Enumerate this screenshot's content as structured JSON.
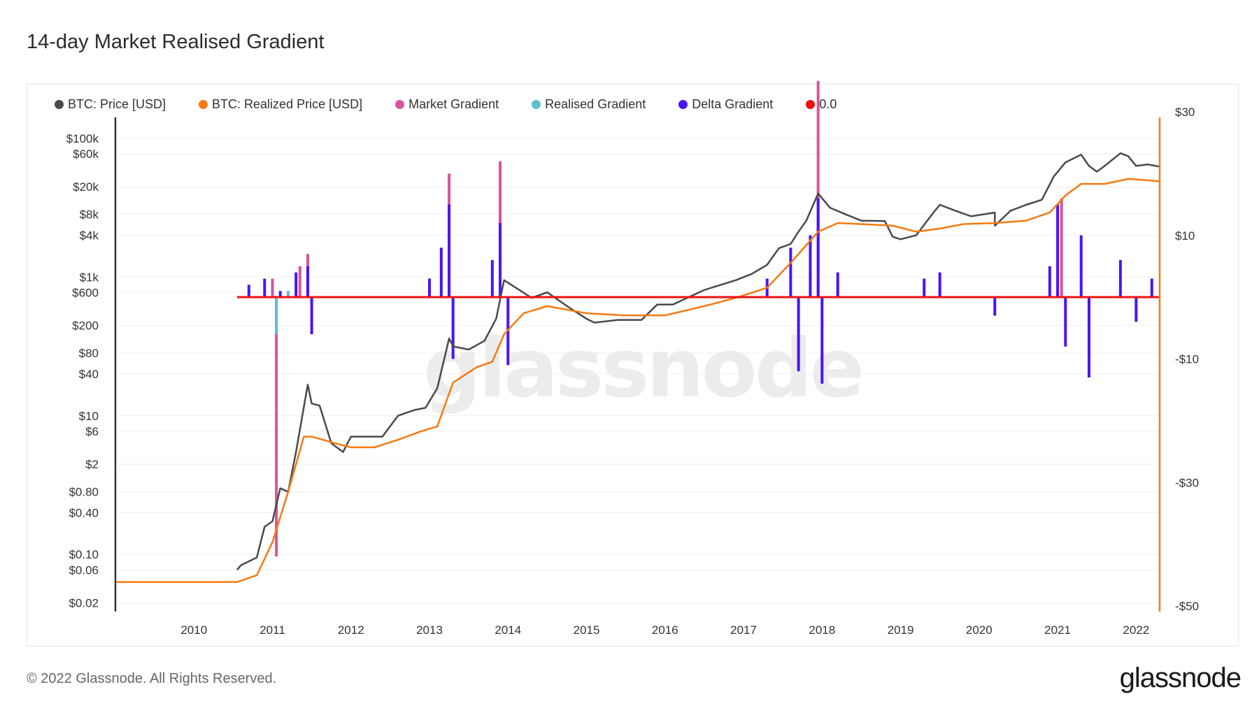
{
  "title": "14-day Market Realised Gradient",
  "footer": "© 2022 Glassnode. All Rights Reserved.",
  "brand": "glassnode",
  "watermark": "glassnode",
  "legend": [
    {
      "label": "BTC: Price [USD]",
      "color": "#4a4a4a"
    },
    {
      "label": "BTC: Realized Price [USD]",
      "color": "#f7790f"
    },
    {
      "label": "Market Gradient",
      "color": "#d8559b"
    },
    {
      "label": "Realised Gradient",
      "color": "#5fbfcf"
    },
    {
      "label": "Delta Gradient",
      "color": "#4a14f5"
    },
    {
      "label": "0.0",
      "color": "#f01010"
    }
  ],
  "chart_data": {
    "type": "line",
    "title": "14-day Market Realised Gradient",
    "x_ticks": [
      "2010",
      "2011",
      "2012",
      "2013",
      "2014",
      "2015",
      "2016",
      "2017",
      "2018",
      "2019",
      "2020",
      "2021",
      "2022"
    ],
    "x_range": [
      2009.0,
      2022.3
    ],
    "left_axis": {
      "scale": "log",
      "range": [
        0.015,
        200000
      ],
      "ticks": [
        {
          "v": 100000,
          "label": "$100k"
        },
        {
          "v": 60000,
          "label": "$60k"
        },
        {
          "v": 20000,
          "label": "$20k"
        },
        {
          "v": 8000,
          "label": "$8k"
        },
        {
          "v": 4000,
          "label": "$4k"
        },
        {
          "v": 1000,
          "label": "$1k"
        },
        {
          "v": 600,
          "label": "$600"
        },
        {
          "v": 200,
          "label": "$200"
        },
        {
          "v": 80,
          "label": "$80"
        },
        {
          "v": 40,
          "label": "$40"
        },
        {
          "v": 10,
          "label": "$10"
        },
        {
          "v": 6,
          "label": "$6"
        },
        {
          "v": 2,
          "label": "$2"
        },
        {
          "v": 0.8,
          "label": "$0.80"
        },
        {
          "v": 0.4,
          "label": "$0.40"
        },
        {
          "v": 0.1,
          "label": "$0.10"
        },
        {
          "v": 0.06,
          "label": "$0.06"
        },
        {
          "v": 0.02,
          "label": "$0.02"
        }
      ]
    },
    "right_axis": {
      "scale": "linear",
      "range": [
        -50,
        30
      ],
      "ticks": [
        {
          "v": 30,
          "label": "$30"
        },
        {
          "v": 10,
          "label": "$10"
        },
        {
          "v": -10,
          "label": "-$10"
        },
        {
          "v": -30,
          "label": "-$30"
        },
        {
          "v": -50,
          "label": "-$50"
        }
      ]
    },
    "series": [
      {
        "name": "BTC: Price [USD]",
        "axis": "left",
        "color": "#4a4a4a",
        "points": [
          [
            2010.55,
            0.06
          ],
          [
            2010.6,
            0.07
          ],
          [
            2010.8,
            0.09
          ],
          [
            2010.9,
            0.25
          ],
          [
            2011.0,
            0.3
          ],
          [
            2011.1,
            0.9
          ],
          [
            2011.2,
            0.8
          ],
          [
            2011.3,
            3
          ],
          [
            2011.45,
            28
          ],
          [
            2011.5,
            15
          ],
          [
            2011.6,
            14
          ],
          [
            2011.75,
            4
          ],
          [
            2011.9,
            3
          ],
          [
            2012.0,
            5
          ],
          [
            2012.2,
            5
          ],
          [
            2012.4,
            5
          ],
          [
            2012.6,
            10
          ],
          [
            2012.8,
            12
          ],
          [
            2012.95,
            13
          ],
          [
            2013.1,
            25
          ],
          [
            2013.25,
            130
          ],
          [
            2013.3,
            100
          ],
          [
            2013.5,
            90
          ],
          [
            2013.7,
            120
          ],
          [
            2013.85,
            250
          ],
          [
            2013.95,
            900
          ],
          [
            2014.1,
            700
          ],
          [
            2014.3,
            500
          ],
          [
            2014.5,
            600
          ],
          [
            2014.8,
            350
          ],
          [
            2015.0,
            250
          ],
          [
            2015.1,
            220
          ],
          [
            2015.4,
            240
          ],
          [
            2015.7,
            240
          ],
          [
            2015.9,
            400
          ],
          [
            2016.1,
            400
          ],
          [
            2016.5,
            650
          ],
          [
            2016.9,
            900
          ],
          [
            2017.1,
            1100
          ],
          [
            2017.3,
            1500
          ],
          [
            2017.45,
            2600
          ],
          [
            2017.6,
            3000
          ],
          [
            2017.7,
            4500
          ],
          [
            2017.8,
            6500
          ],
          [
            2017.95,
            16000
          ],
          [
            2018.1,
            10000
          ],
          [
            2018.3,
            8000
          ],
          [
            2018.5,
            6500
          ],
          [
            2018.8,
            6400
          ],
          [
            2018.9,
            3800
          ],
          [
            2019.0,
            3500
          ],
          [
            2019.2,
            4000
          ],
          [
            2019.4,
            8000
          ],
          [
            2019.5,
            11000
          ],
          [
            2019.7,
            9000
          ],
          [
            2019.9,
            7500
          ],
          [
            2020.2,
            8500
          ],
          [
            2020.2,
            5500
          ],
          [
            2020.4,
            9000
          ],
          [
            2020.6,
            11000
          ],
          [
            2020.8,
            13000
          ],
          [
            2020.95,
            28000
          ],
          [
            2021.1,
            45000
          ],
          [
            2021.3,
            58000
          ],
          [
            2021.4,
            40000
          ],
          [
            2021.5,
            33000
          ],
          [
            2021.6,
            40000
          ],
          [
            2021.8,
            61000
          ],
          [
            2021.9,
            55000
          ],
          [
            2022.0,
            40000
          ],
          [
            2022.15,
            42000
          ],
          [
            2022.3,
            39000
          ]
        ]
      },
      {
        "name": "BTC: Realized Price [USD]",
        "axis": "left",
        "color": "#f7790f",
        "points": [
          [
            2009.0,
            0.04
          ],
          [
            2010.55,
            0.04
          ],
          [
            2010.8,
            0.05
          ],
          [
            2011.0,
            0.15
          ],
          [
            2011.2,
            0.8
          ],
          [
            2011.4,
            5
          ],
          [
            2011.5,
            5
          ],
          [
            2011.8,
            4
          ],
          [
            2012.0,
            3.5
          ],
          [
            2012.3,
            3.5
          ],
          [
            2012.6,
            4.5
          ],
          [
            2012.9,
            6
          ],
          [
            2013.1,
            7
          ],
          [
            2013.3,
            30
          ],
          [
            2013.6,
            50
          ],
          [
            2013.8,
            60
          ],
          [
            2013.95,
            150
          ],
          [
            2014.2,
            300
          ],
          [
            2014.5,
            380
          ],
          [
            2015.0,
            300
          ],
          [
            2015.5,
            280
          ],
          [
            2016.0,
            280
          ],
          [
            2016.5,
            380
          ],
          [
            2016.9,
            500
          ],
          [
            2017.3,
            700
          ],
          [
            2017.6,
            1600
          ],
          [
            2017.95,
            4500
          ],
          [
            2018.2,
            6000
          ],
          [
            2018.5,
            5800
          ],
          [
            2018.9,
            5500
          ],
          [
            2019.2,
            4500
          ],
          [
            2019.5,
            5000
          ],
          [
            2019.8,
            5800
          ],
          [
            2020.2,
            6000
          ],
          [
            2020.6,
            6500
          ],
          [
            2020.9,
            8500
          ],
          [
            2021.1,
            15000
          ],
          [
            2021.3,
            22000
          ],
          [
            2021.6,
            22000
          ],
          [
            2021.9,
            26000
          ],
          [
            2022.3,
            24000
          ]
        ]
      },
      {
        "name": "0.0",
        "axis": "right",
        "color": "#f01010",
        "points": [
          [
            2010.55,
            0
          ],
          [
            2022.3,
            0
          ]
        ]
      }
    ],
    "bars": [
      {
        "name": "Market Gradient",
        "axis": "right",
        "color": "#d8559b",
        "points": [
          [
            2011.05,
            -42
          ],
          [
            2011.0,
            3
          ],
          [
            2011.35,
            5
          ],
          [
            2011.45,
            7
          ],
          [
            2013.25,
            20
          ],
          [
            2013.9,
            22
          ],
          [
            2017.95,
            35
          ],
          [
            2021.05,
            16
          ]
        ]
      },
      {
        "name": "Realised Gradient",
        "axis": "right",
        "color": "#5fbfcf",
        "points": [
          [
            2011.05,
            -6
          ],
          [
            2011.2,
            1
          ]
        ]
      },
      {
        "name": "Delta Gradient",
        "axis": "right",
        "color": "#4a14f5",
        "points": [
          [
            2010.7,
            2
          ],
          [
            2010.9,
            3
          ],
          [
            2011.1,
            1
          ],
          [
            2011.3,
            4
          ],
          [
            2011.45,
            5
          ],
          [
            2011.5,
            -6
          ],
          [
            2013.0,
            3
          ],
          [
            2013.15,
            8
          ],
          [
            2013.25,
            15
          ],
          [
            2013.3,
            -10
          ],
          [
            2013.8,
            6
          ],
          [
            2013.9,
            12
          ],
          [
            2014.0,
            -11
          ],
          [
            2017.3,
            3
          ],
          [
            2017.6,
            8
          ],
          [
            2017.7,
            -12
          ],
          [
            2017.85,
            10
          ],
          [
            2017.95,
            16
          ],
          [
            2018.0,
            -14
          ],
          [
            2018.2,
            4
          ],
          [
            2019.3,
            3
          ],
          [
            2019.5,
            4
          ],
          [
            2020.2,
            -3
          ],
          [
            2020.9,
            5
          ],
          [
            2021.0,
            15
          ],
          [
            2021.1,
            -8
          ],
          [
            2021.3,
            10
          ],
          [
            2021.4,
            -13
          ],
          [
            2021.8,
            6
          ],
          [
            2022.0,
            -4
          ],
          [
            2022.2,
            3
          ]
        ]
      }
    ]
  }
}
